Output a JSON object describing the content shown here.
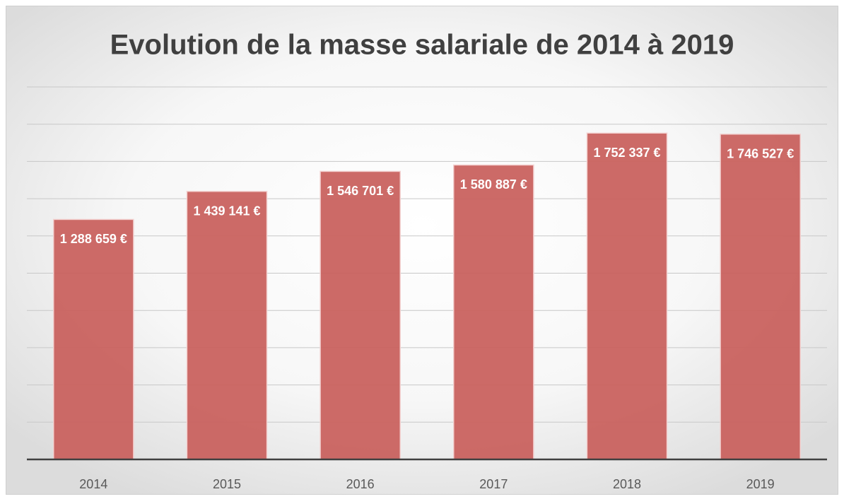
{
  "chart_data": {
    "type": "bar",
    "title": "Evolution de la masse salariale de 2014 à 2019",
    "categories": [
      "2014",
      "2015",
      "2016",
      "2017",
      "2018",
      "2019"
    ],
    "values": [
      1288659,
      1439141,
      1546701,
      1580887,
      1752337,
      1746527
    ],
    "value_labels": [
      "1 288 659 €",
      "1 439 141 €",
      "1 546 701 €",
      "1 580 887 €",
      "1 752 337 €",
      "1 746 527 €"
    ],
    "color": "#c9625f",
    "ylim": [
      0,
      2000000
    ],
    "yticks": [
      0,
      200000,
      400000,
      600000,
      800000,
      1000000,
      1200000,
      1400000,
      1600000,
      1800000,
      2000000
    ],
    "grid": true
  }
}
